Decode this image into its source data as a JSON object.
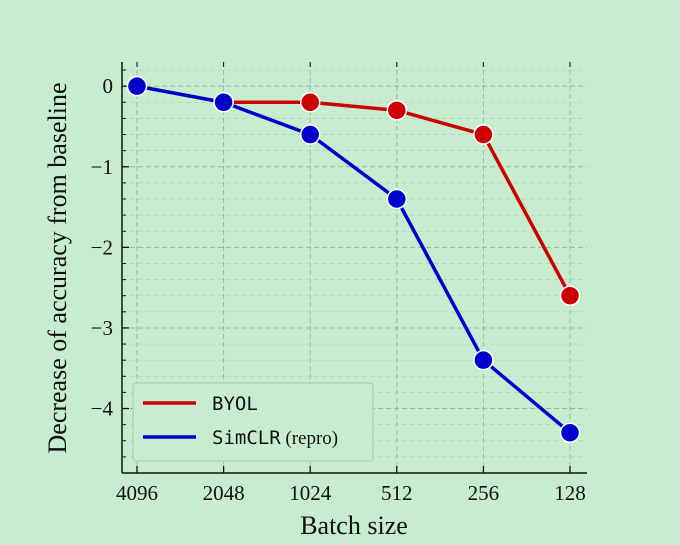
{
  "chart_data": {
    "type": "line",
    "xlabel": "Batch size",
    "ylabel": "Decrease of accuracy from baseline",
    "categories": [
      "4096",
      "2048",
      "1024",
      "512",
      "256",
      "128"
    ],
    "yticks": [
      0,
      -1,
      -2,
      -3,
      -4
    ],
    "ytick_labels": [
      "0",
      "−1",
      "−2",
      "−3",
      "−4"
    ],
    "ylim": [
      -4.8,
      0.3
    ],
    "grid": true,
    "legend_position": "lower-left",
    "series": [
      {
        "name": "BYOL",
        "name_main": "BYOL",
        "name_suffix": "",
        "color": "#cc0000",
        "values": [
          0,
          -0.2,
          -0.2,
          -0.3,
          -0.6,
          -2.6
        ]
      },
      {
        "name": "SimCLR (repro)",
        "name_main": "SimCLR",
        "name_suffix": " (repro)",
        "color": "#0000cc",
        "values": [
          0,
          -0.2,
          -0.6,
          -1.4,
          -3.4,
          -4.3
        ]
      }
    ]
  }
}
